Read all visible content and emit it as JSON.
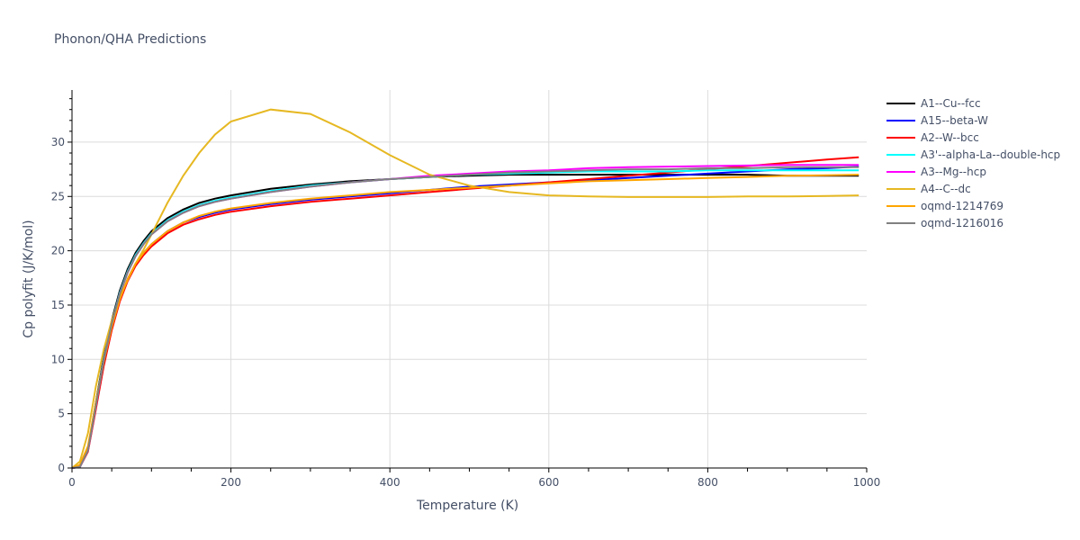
{
  "chart_data": {
    "type": "line",
    "title": "Phonon/QHA Predictions",
    "xlabel": "Temperature (K)",
    "ylabel": "Cp polyfit (J/K/mol)",
    "xlim": [
      0,
      1000
    ],
    "ylim": [
      0,
      34.8
    ],
    "xticks": [
      0,
      200,
      400,
      600,
      800,
      1000
    ],
    "yticks": [
      0,
      5,
      10,
      15,
      20,
      25,
      30
    ],
    "grid": true,
    "legend_position": "right",
    "x": [
      0,
      10,
      20,
      30,
      40,
      50,
      60,
      70,
      80,
      90,
      100,
      120,
      140,
      160,
      180,
      200,
      250,
      300,
      350,
      400,
      450,
      500,
      550,
      600,
      650,
      700,
      750,
      800,
      850,
      900,
      950,
      990
    ],
    "series": [
      {
        "name": "A1--Cu--fcc",
        "color": "#000000",
        "values": [
          0,
          0.2,
          1.8,
          6.0,
          10.2,
          13.6,
          16.3,
          18.3,
          19.8,
          20.9,
          21.8,
          23.0,
          23.8,
          24.4,
          24.8,
          25.1,
          25.7,
          26.1,
          26.4,
          26.6,
          26.8,
          26.9,
          27.0,
          27.0,
          27.0,
          27.0,
          27.0,
          27.0,
          27.0,
          26.9,
          26.9,
          26.9
        ]
      },
      {
        "name": "A15--beta-W",
        "color": "#0000ff",
        "values": [
          0,
          0.1,
          1.6,
          5.6,
          9.6,
          12.9,
          15.5,
          17.4,
          18.8,
          19.8,
          20.6,
          21.8,
          22.6,
          23.1,
          23.5,
          23.8,
          24.3,
          24.7,
          25.0,
          25.3,
          25.6,
          25.9,
          26.1,
          26.3,
          26.5,
          26.7,
          26.9,
          27.1,
          27.3,
          27.5,
          27.6,
          27.75
        ]
      },
      {
        "name": "A2--W--bcc",
        "color": "#ff0000",
        "values": [
          0,
          0.1,
          1.5,
          5.4,
          9.4,
          12.7,
          15.3,
          17.2,
          18.6,
          19.6,
          20.4,
          21.6,
          22.4,
          22.9,
          23.3,
          23.6,
          24.1,
          24.5,
          24.8,
          25.1,
          25.4,
          25.7,
          26.0,
          26.3,
          26.6,
          26.9,
          27.2,
          27.5,
          27.8,
          28.1,
          28.4,
          28.6
        ]
      },
      {
        "name": "A3'--alpha-La--double-hcp",
        "color": "#00ffff",
        "values": [
          0,
          0.1,
          1.7,
          5.8,
          10.0,
          13.4,
          16.1,
          18.1,
          19.6,
          20.7,
          21.6,
          22.8,
          23.6,
          24.2,
          24.6,
          24.9,
          25.5,
          26.0,
          26.3,
          26.6,
          26.8,
          27.0,
          27.1,
          27.2,
          27.3,
          27.3,
          27.3,
          27.4,
          27.4,
          27.4,
          27.4,
          27.4
        ]
      },
      {
        "name": "A3--Mg--hcp",
        "color": "#ff00ff",
        "values": [
          0,
          0.1,
          1.6,
          5.7,
          9.9,
          13.3,
          16.0,
          18.0,
          19.5,
          20.6,
          21.5,
          22.7,
          23.5,
          24.1,
          24.5,
          24.8,
          25.4,
          25.9,
          26.3,
          26.6,
          26.9,
          27.1,
          27.3,
          27.4,
          27.6,
          27.7,
          27.75,
          27.8,
          27.85,
          27.9,
          27.9,
          27.9
        ]
      },
      {
        "name": "A4--C--dc",
        "color": "#e6b822",
        "values": [
          0,
          0.6,
          3.2,
          7.5,
          10.9,
          13.6,
          15.7,
          17.3,
          18.8,
          20.1,
          21.5,
          24.4,
          26.9,
          29.0,
          30.7,
          31.9,
          33.0,
          32.6,
          30.9,
          28.8,
          27.0,
          26.0,
          25.4,
          25.1,
          25.0,
          24.95,
          24.95,
          24.95,
          25.0,
          25.0,
          25.05,
          25.1
        ]
      },
      {
        "name": "oqmd-1214769",
        "color": "#ffa500",
        "values": [
          0,
          0.3,
          2.0,
          6.0,
          9.8,
          13.0,
          15.5,
          17.4,
          18.8,
          19.8,
          20.6,
          21.8,
          22.6,
          23.2,
          23.6,
          23.9,
          24.4,
          24.8,
          25.1,
          25.4,
          25.6,
          25.8,
          26.0,
          26.2,
          26.4,
          26.5,
          26.6,
          26.7,
          26.8,
          26.9,
          26.95,
          27.0
        ]
      },
      {
        "name": "oqmd-1216016",
        "color": "#808080",
        "values": [
          0,
          0.1,
          1.6,
          5.7,
          9.9,
          13.3,
          16.0,
          18.0,
          19.5,
          20.6,
          21.5,
          22.7,
          23.5,
          24.1,
          24.5,
          24.8,
          25.4,
          25.9,
          26.3,
          26.6,
          26.8,
          27.0,
          27.2,
          27.3,
          27.4,
          27.5,
          27.5,
          27.6,
          27.6,
          27.7,
          27.7,
          27.7
        ]
      }
    ]
  }
}
